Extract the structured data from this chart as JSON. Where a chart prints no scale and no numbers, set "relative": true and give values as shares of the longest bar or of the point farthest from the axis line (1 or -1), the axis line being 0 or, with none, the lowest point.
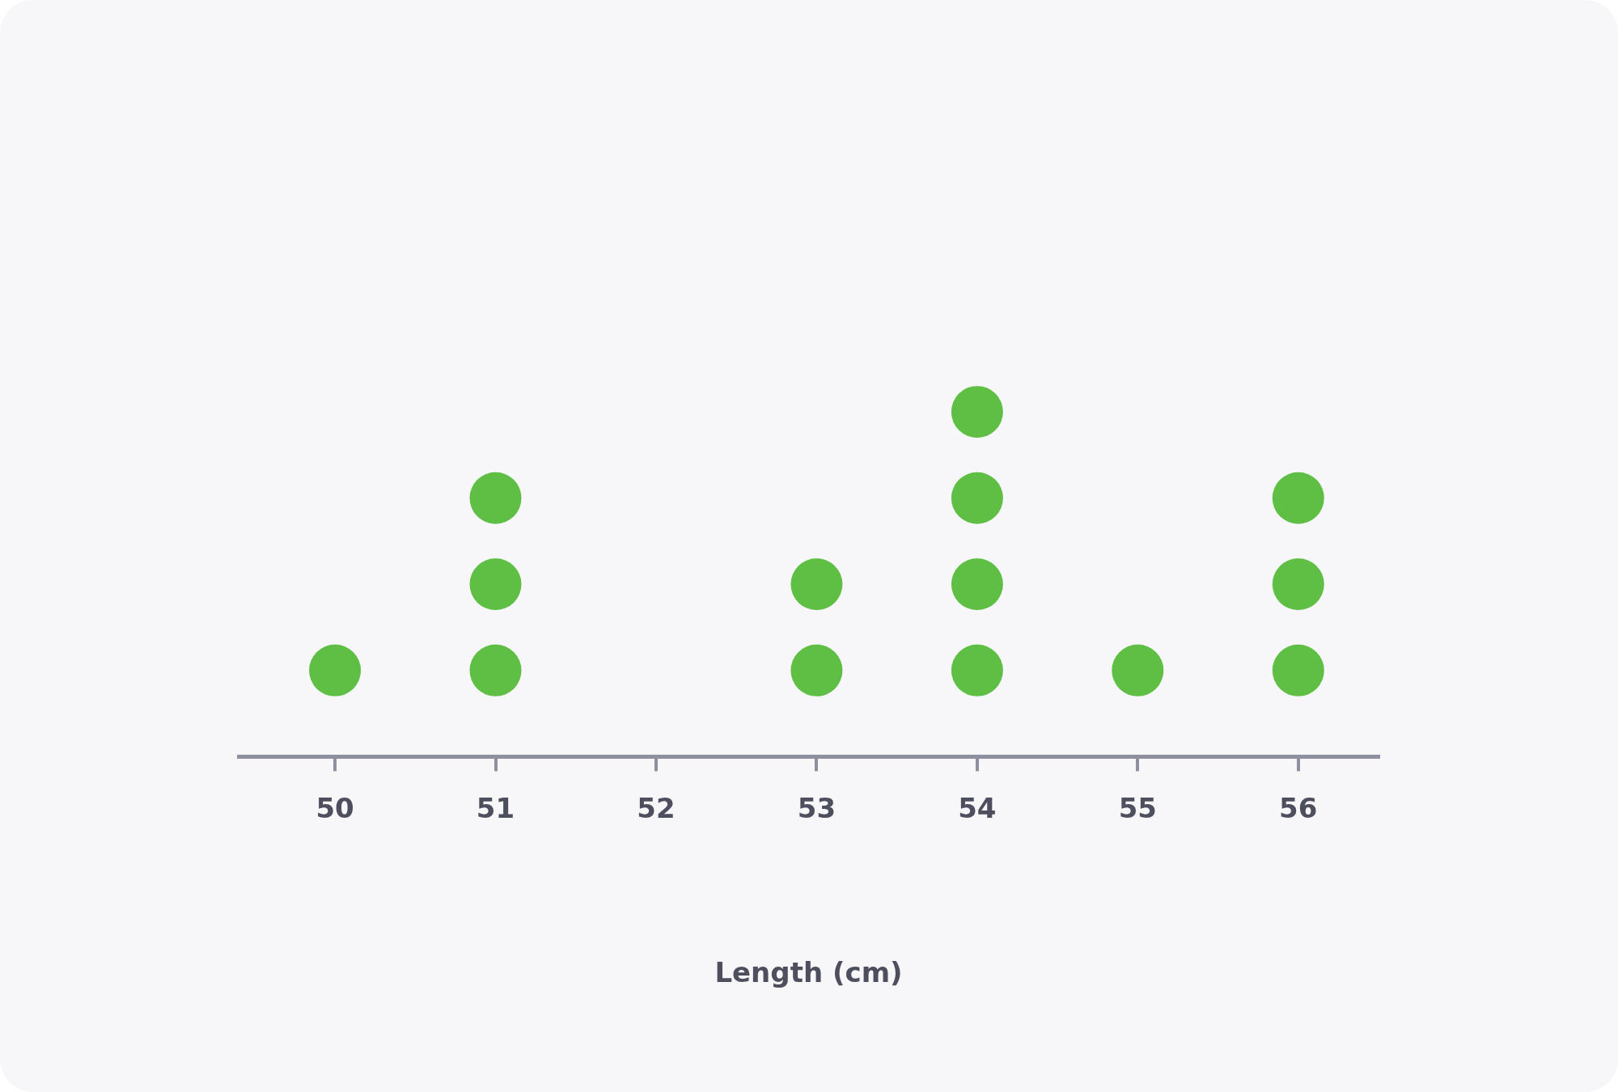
{
  "chart_data": {
    "type": "scatter",
    "xlabel": "Length (cm)",
    "x": [
      50,
      51,
      51,
      51,
      53,
      53,
      54,
      54,
      54,
      54,
      55,
      56,
      56,
      56
    ],
    "values": [
      0.25,
      0.25,
      0.5,
      0.75,
      0.25,
      0.5,
      0.25,
      0.5,
      0.75,
      1,
      0.25,
      0.25,
      0.5,
      0.75
    ],
    "relative": true,
    "color": "#5fbf45",
    "marker": "circle",
    "xlim": [
      49.4,
      56.5
    ],
    "xticks": [
      50,
      51,
      52,
      53,
      54,
      55,
      56
    ],
    "tick_labels": "x",
    "grid": false,
    "legend": false
  }
}
